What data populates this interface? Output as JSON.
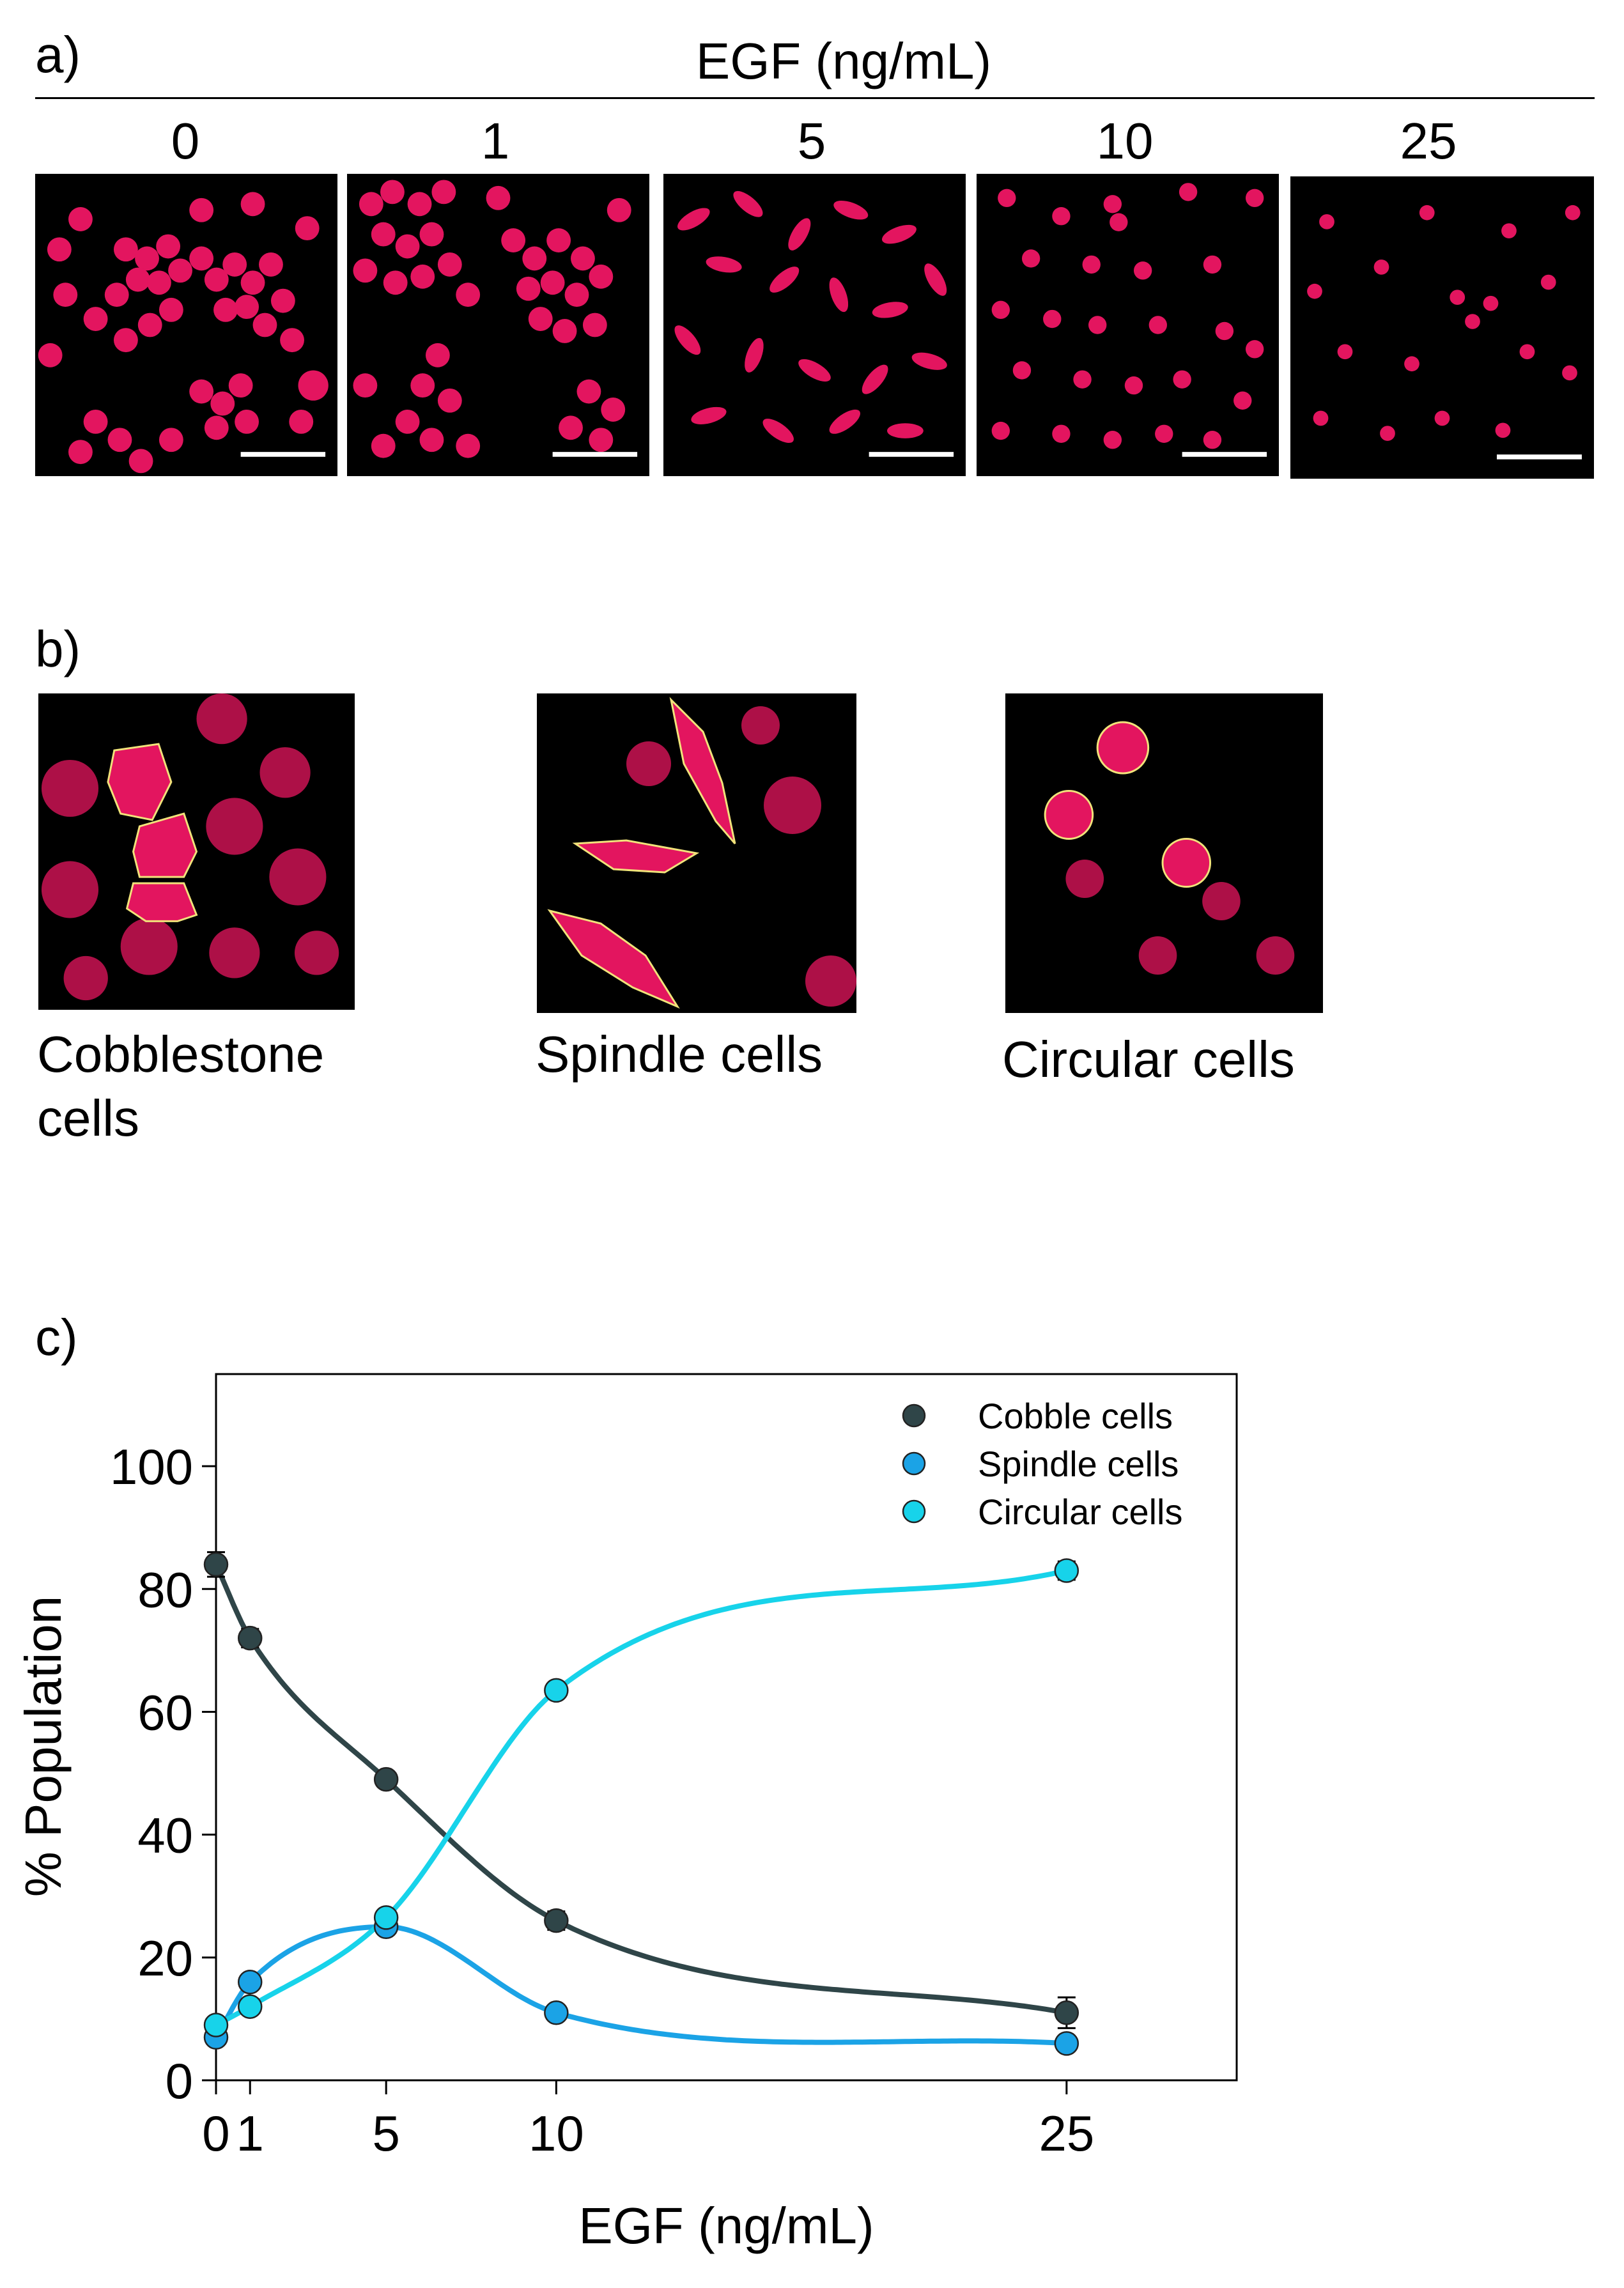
{
  "panel_a": {
    "label": "a)",
    "header": "EGF (ng/mL)",
    "concentrations": [
      "0",
      "1",
      "5",
      "10",
      "25"
    ]
  },
  "panel_b": {
    "label": "b)",
    "morphologies": [
      {
        "line1": "Cobblestone",
        "line2": "cells"
      },
      {
        "line1": "Spindle cells",
        "line2": ""
      },
      {
        "line1": "Circular cells",
        "line2": ""
      }
    ]
  },
  "colors": {
    "cobble": "#2f4548",
    "spindle": "#1ba3e6",
    "circular": "#17d3ea",
    "cell_fill": "#e3155f",
    "outline": "#f1e27a"
  },
  "chart_data": {
    "type": "scatter",
    "panel_label": "c)",
    "xlabel": "EGF (ng/mL)",
    "ylabel": "% Population",
    "x_tick_labels": [
      "0",
      "1",
      "5",
      "10",
      "25"
    ],
    "x_ticks": [
      0,
      1,
      5,
      10,
      25
    ],
    "y_ticks": [
      0,
      20,
      40,
      60,
      80,
      100
    ],
    "xlim": [
      0,
      30
    ],
    "ylim": [
      0,
      115
    ],
    "legend_position": "top-right",
    "series": [
      {
        "name": "Cobble cells",
        "color": "#2f4548",
        "x": [
          0,
          1,
          5,
          10,
          25
        ],
        "y": [
          84,
          72,
          49,
          26,
          11
        ],
        "err": [
          2,
          1.5,
          1,
          1.5,
          2.5
        ]
      },
      {
        "name": "Spindle cells",
        "color": "#1ba3e6",
        "x": [
          0,
          1,
          5,
          10,
          25
        ],
        "y": [
          7,
          16,
          25,
          11,
          6
        ],
        "err": [
          1,
          1,
          1,
          1,
          1
        ]
      },
      {
        "name": "Circular cells",
        "color": "#17d3ea",
        "x": [
          0,
          1,
          5,
          10,
          25
        ],
        "y": [
          9,
          12,
          26.5,
          63.5,
          83
        ],
        "err": [
          1,
          1,
          1,
          1,
          1.5
        ]
      }
    ]
  }
}
